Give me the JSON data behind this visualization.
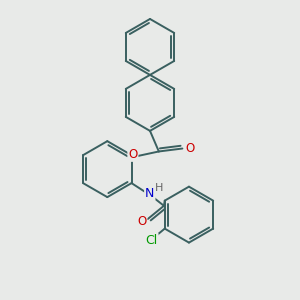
{
  "bg_color": "#e8eae8",
  "bond_color": "#3a6060",
  "bond_width": 1.4,
  "atom_colors": {
    "O": "#cc0000",
    "N": "#0000cc",
    "Cl": "#009900",
    "H": "#666666"
  },
  "font_size": 8.5,
  "fig_size": [
    3.0,
    3.0
  ],
  "dpi": 100,
  "xlim": [
    0,
    10
  ],
  "ylim": [
    0,
    10
  ]
}
